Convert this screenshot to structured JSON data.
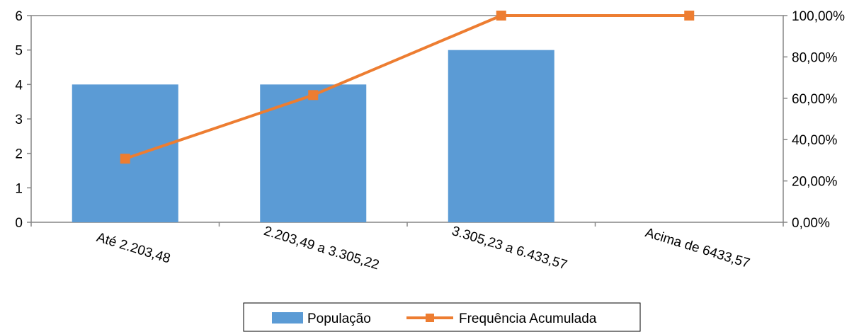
{
  "chart_data": {
    "type": "bar",
    "categories": [
      "Até 2.203,48",
      "2.203,49 a 3.305,22",
      "3.305,23 a 6.433,57",
      "Acima de 6433,57"
    ],
    "series": [
      {
        "name": "População",
        "kind": "bar",
        "axis": "left",
        "values": [
          4,
          4,
          5,
          0
        ]
      },
      {
        "name": "Frequência Acumulada",
        "kind": "line",
        "axis": "right",
        "values": [
          30.77,
          61.54,
          100,
          100
        ]
      }
    ],
    "y_left": {
      "ylim": [
        0,
        6
      ],
      "ticks": [
        "0",
        "1",
        "2",
        "3",
        "4",
        "5",
        "6"
      ]
    },
    "y_right": {
      "ylim": [
        0,
        100
      ],
      "ticks": [
        "0,00%",
        "20,00%",
        "40,00%",
        "60,00%",
        "80,00%",
        "100,00%"
      ]
    },
    "grid": false,
    "legend_position": "bottom",
    "colors": {
      "bar": "#5b9bd5",
      "line": "#ed7d31",
      "axis": "#868686"
    }
  }
}
